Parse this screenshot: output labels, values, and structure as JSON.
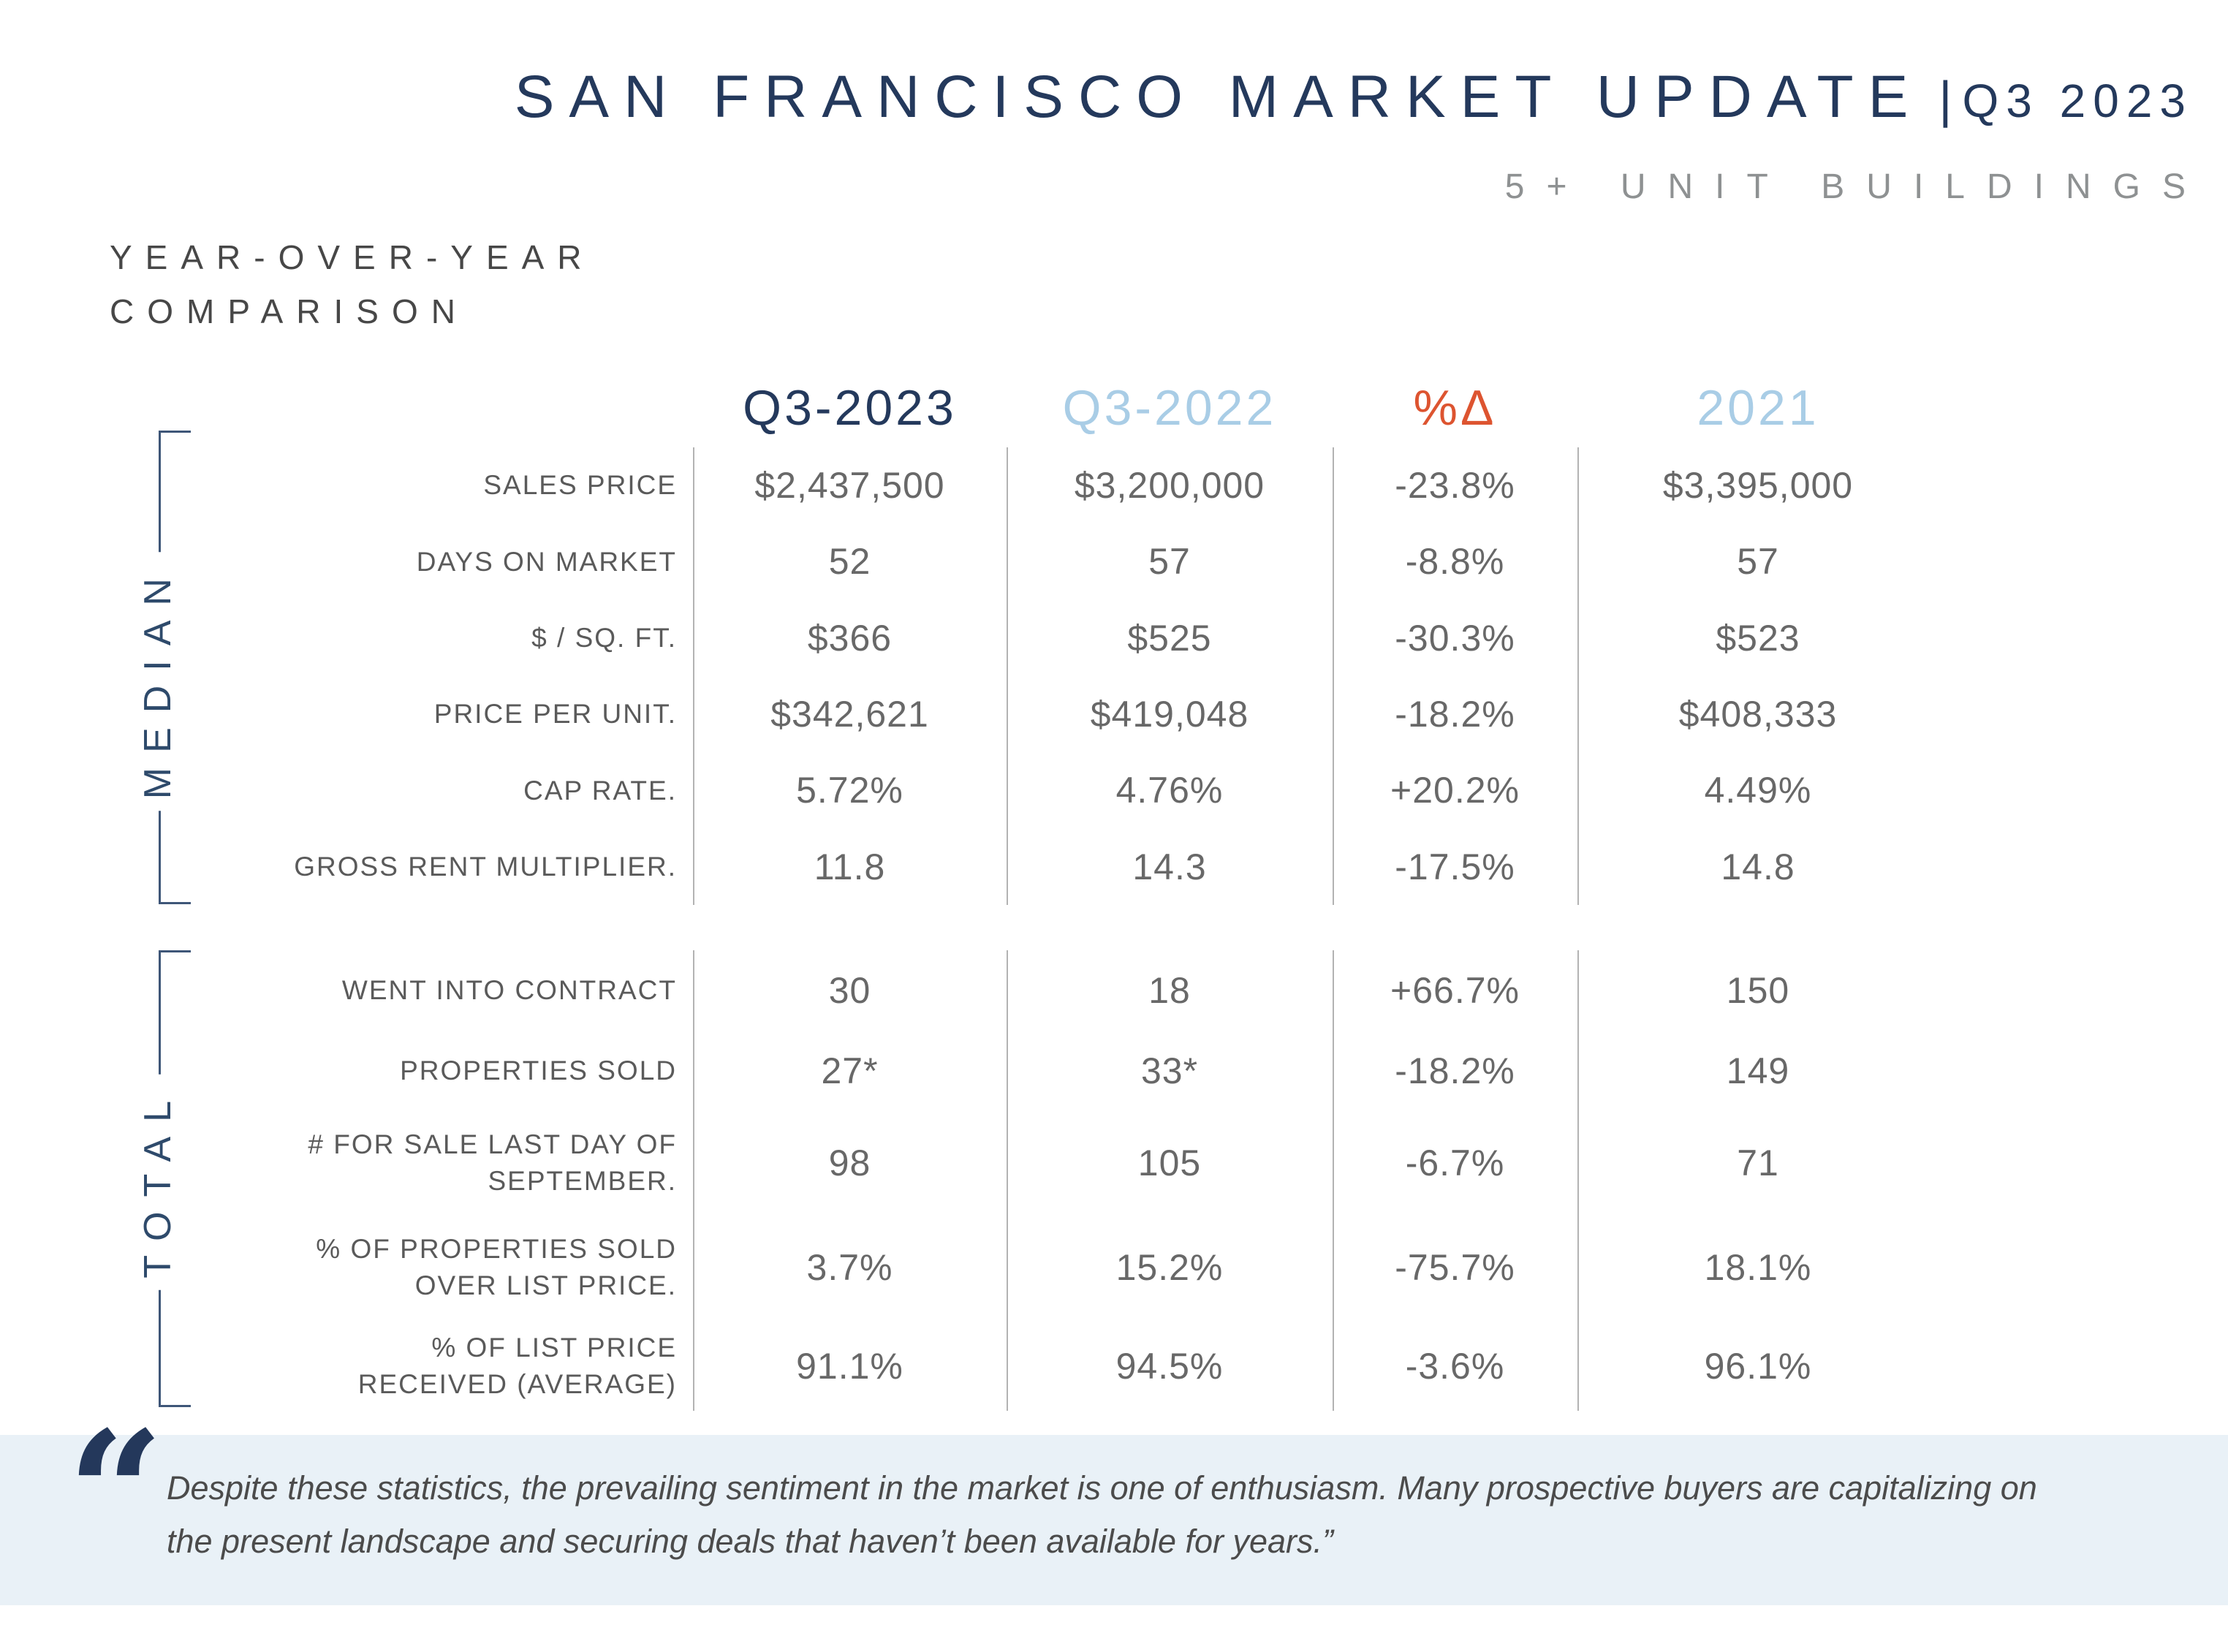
{
  "header": {
    "title_main": "SAN FRANCISCO MARKET UPDATE",
    "title_separator": "|",
    "title_period": "Q3 2023",
    "subtitle": "5+ UNIT BUILDINGS"
  },
  "section_label": "YEAR-OVER-YEAR\nCOMPARISON",
  "table": {
    "columns": [
      "Q3-2023",
      "Q3-2022",
      "%Δ",
      "2021"
    ],
    "column_colors": [
      "#24395c",
      "#a9cde6",
      "#dd5430",
      "#a9cde6"
    ],
    "groups": [
      {
        "name": "MEDIAN",
        "rows": [
          {
            "label": "SALES PRICE",
            "values": [
              "$2,437,500",
              "$3,200,000",
              "-23.8%",
              "$3,395,000"
            ]
          },
          {
            "label": "DAYS ON MARKET",
            "values": [
              "52",
              "57",
              "-8.8%",
              "57"
            ]
          },
          {
            "label": "$ / SQ. FT.",
            "values": [
              "$366",
              "$525",
              "-30.3%",
              "$523"
            ]
          },
          {
            "label": "PRICE PER UNIT.",
            "values": [
              "$342,621",
              "$419,048",
              "-18.2%",
              "$408,333"
            ]
          },
          {
            "label": "CAP RATE.",
            "values": [
              "5.72%",
              "4.76%",
              "+20.2%",
              "4.49%"
            ]
          },
          {
            "label": "GROSS RENT MULTIPLIER.",
            "values": [
              "11.8",
              "14.3",
              "-17.5%",
              "14.8"
            ]
          }
        ]
      },
      {
        "name": "TOTAL",
        "rows": [
          {
            "label": "WENT INTO CONTRACT",
            "values": [
              "30",
              "18",
              "+66.7%",
              "150"
            ]
          },
          {
            "label": "PROPERTIES SOLD",
            "values": [
              "27*",
              "33*",
              "-18.2%",
              "149"
            ]
          },
          {
            "label": "# FOR SALE LAST DAY OF\nSEPTEMBER.",
            "values": [
              "98",
              "105",
              "-6.7%",
              "71"
            ]
          },
          {
            "label": "% OF PROPERTIES SOLD\nOVER LIST PRICE.",
            "values": [
              "3.7%",
              "15.2%",
              "-75.7%",
              "18.1%"
            ]
          },
          {
            "label": "% OF LIST PRICE\nRECEIVED (AVERAGE)",
            "values": [
              "91.1%",
              "94.5%",
              "-3.6%",
              "96.1%"
            ]
          }
        ]
      }
    ]
  },
  "quote": {
    "mark": "“",
    "text": "Despite these statistics, the prevailing sentiment in the market is one of enthusiasm. Many prospective buyers are capitalizing on\nthe present landscape and securing deals that haven’t been available for years.”"
  },
  "colors": {
    "navy": "#24395c",
    "light_blue": "#a9cde6",
    "orange": "#dd5430",
    "value_gray": "#686868",
    "label_gray": "#5a5a5a",
    "divider_gray": "#b3b3b3",
    "bracket_navy": "#3e5678",
    "quote_background": "#e9f1f7",
    "quote_mark_navy": "#24385b"
  }
}
